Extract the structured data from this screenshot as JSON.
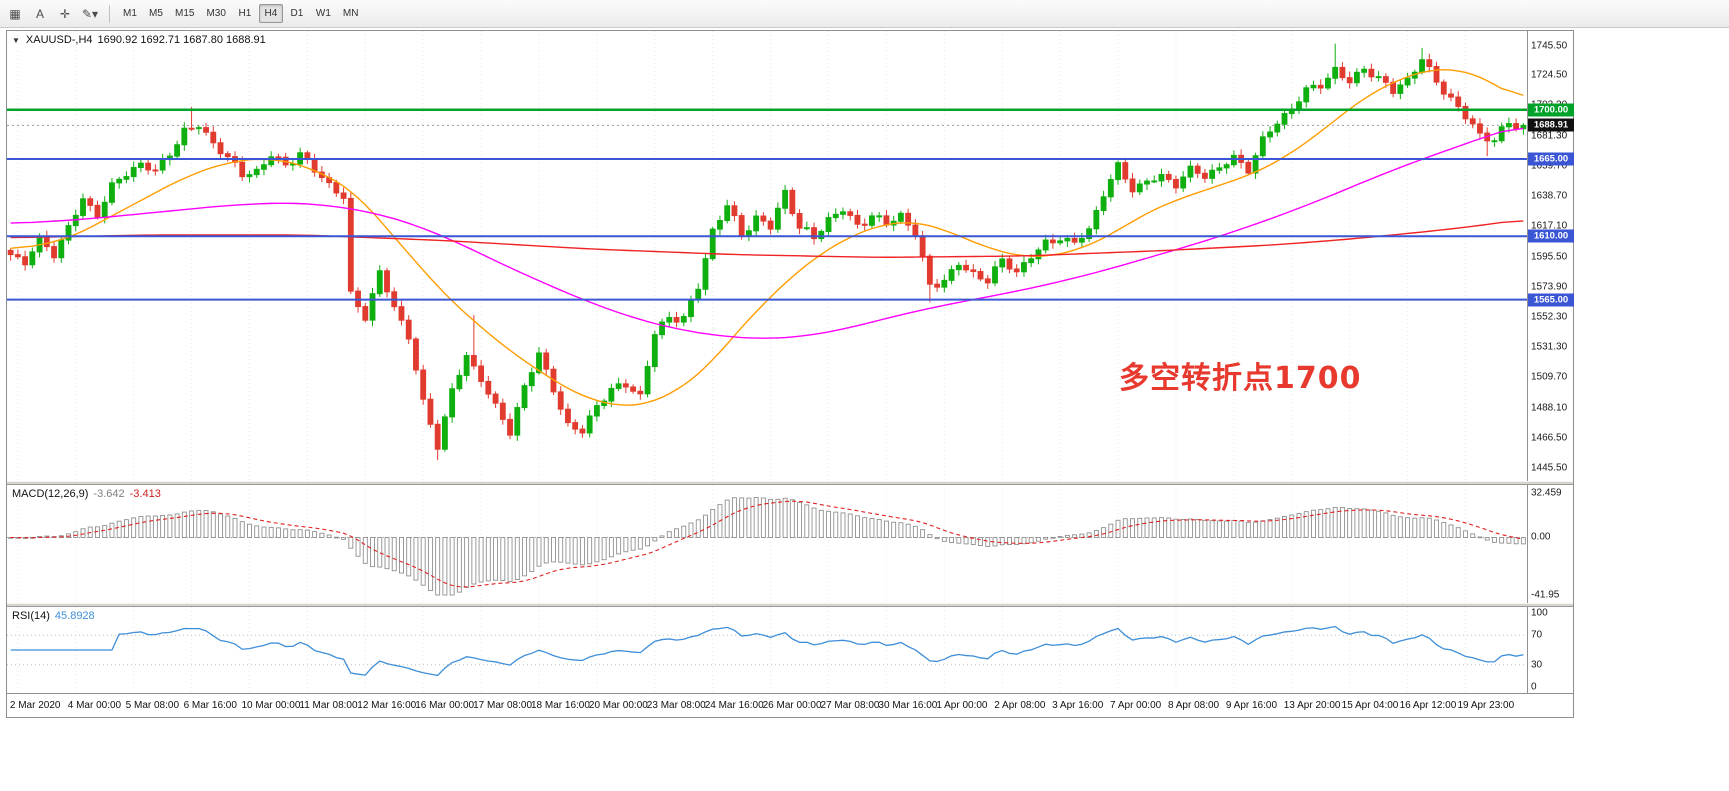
{
  "toolbar": {
    "icons": [
      {
        "name": "chart-template-icon",
        "glyph": "▦"
      },
      {
        "name": "text-tool-icon",
        "glyph": "A"
      },
      {
        "name": "crosshair-icon",
        "glyph": "✛"
      },
      {
        "name": "draw-tools-dropdown-icon",
        "glyph": "✎▾"
      }
    ],
    "timeframes": [
      "M1",
      "M5",
      "M15",
      "M30",
      "H1",
      "H4",
      "D1",
      "W1",
      "MN"
    ],
    "active_timeframe": "H4"
  },
  "chart": {
    "header_symbol": "XAUUSD-,H4",
    "header_ohlc": "1690.92 1692.71 1687.80 1688.91",
    "annotation": {
      "text": "多空转折点1700",
      "color": "#e8392e"
    }
  },
  "macd_header": {
    "title": "MACD(12,26,9)",
    "main_value": "-3.642",
    "signal_value": "-3.413"
  },
  "rsi_header": {
    "title": "RSI(14)",
    "value": "45.8928"
  },
  "chart_data": {
    "type": "candlestick",
    "symbol": "XAUUSD-",
    "timeframe": "H4",
    "last_ohlc": {
      "open": 1690.92,
      "high": 1692.71,
      "low": 1687.8,
      "close": 1688.91
    },
    "num_bars": 210,
    "first_label_bar": 1,
    "bars_per_label": 8,
    "price_scale": {
      "max": 1756,
      "min": 1436
    },
    "y_ticks": [
      "1745.50",
      "1724.50",
      "1703.20",
      "1681.30",
      "1659.70",
      "1638.70",
      "1617.10",
      "1595.50",
      "1573.90",
      "1552.30",
      "1531.30",
      "1509.70",
      "1488.10",
      "1466.50",
      "1445.50"
    ],
    "x_labels": [
      "2 Mar 2020",
      "4 Mar 00:00",
      "5 Mar 08:00",
      "6 Mar 16:00",
      "10 Mar 00:00",
      "11 Mar 08:00",
      "12 Mar 16:00",
      "16 Mar 00:00",
      "17 Mar 08:00",
      "18 Mar 16:00",
      "20 Mar 00:00",
      "23 Mar 08:00",
      "24 Mar 16:00",
      "26 Mar 00:00",
      "27 Mar 08:00",
      "30 Mar 16:00",
      "1 Apr 00:00",
      "2 Apr 08:00",
      "3 Apr 16:00",
      "7 Apr 00:00",
      "8 Apr 08:00",
      "9 Apr 16:00",
      "13 Apr 20:00",
      "15 Apr 04:00",
      "16 Apr 12:00",
      "19 Apr 23:00"
    ],
    "h_lines": [
      {
        "price": 1700.0,
        "label": "1700.00",
        "color": "#00a32a",
        "width": 2.4
      },
      {
        "price": 1665.0,
        "label": "1665.00",
        "color": "#3a56d4",
        "width": 2
      },
      {
        "price": 1610.0,
        "label": "1610.00",
        "color": "#3a56d4",
        "width": 2
      },
      {
        "price": 1565.0,
        "label": "1565.00",
        "color": "#3a56d4",
        "width": 2
      }
    ],
    "current_price": {
      "value": 1688.91,
      "label": "1688.91",
      "badge_color": "#111111"
    },
    "close_waypoints": [
      [
        0,
        1597
      ],
      [
        2,
        1590
      ],
      [
        4,
        1604
      ],
      [
        6,
        1597
      ],
      [
        8,
        1618
      ],
      [
        10,
        1638
      ],
      [
        12,
        1628
      ],
      [
        14,
        1644
      ],
      [
        16,
        1652
      ],
      [
        18,
        1660
      ],
      [
        20,
        1655
      ],
      [
        22,
        1672
      ],
      [
        24,
        1687
      ],
      [
        26,
        1689
      ],
      [
        28,
        1676
      ],
      [
        30,
        1662
      ],
      [
        32,
        1653
      ],
      [
        34,
        1657
      ],
      [
        36,
        1669
      ],
      [
        38,
        1664
      ],
      [
        40,
        1668
      ],
      [
        42,
        1655
      ],
      [
        44,
        1645
      ],
      [
        46,
        1636
      ],
      [
        47,
        1568
      ],
      [
        49,
        1556
      ],
      [
        51,
        1586
      ],
      [
        53,
        1560
      ],
      [
        55,
        1538
      ],
      [
        57,
        1488
      ],
      [
        59,
        1460
      ],
      [
        61,
        1502
      ],
      [
        63,
        1526
      ],
      [
        65,
        1512
      ],
      [
        67,
        1488
      ],
      [
        69,
        1468
      ],
      [
        71,
        1502
      ],
      [
        73,
        1524
      ],
      [
        75,
        1504
      ],
      [
        77,
        1478
      ],
      [
        79,
        1472
      ],
      [
        81,
        1490
      ],
      [
        83,
        1497
      ],
      [
        85,
        1503
      ],
      [
        87,
        1497
      ],
      [
        89,
        1542
      ],
      [
        91,
        1556
      ],
      [
        93,
        1552
      ],
      [
        95,
        1572
      ],
      [
        97,
        1612
      ],
      [
        99,
        1630
      ],
      [
        101,
        1612
      ],
      [
        103,
        1626
      ],
      [
        105,
        1618
      ],
      [
        107,
        1642
      ],
      [
        109,
        1614
      ],
      [
        111,
        1606
      ],
      [
        113,
        1622
      ],
      [
        115,
        1630
      ],
      [
        117,
        1620
      ],
      [
        119,
        1627
      ],
      [
        121,
        1617
      ],
      [
        123,
        1623
      ],
      [
        125,
        1610
      ],
      [
        127,
        1574
      ],
      [
        129,
        1582
      ],
      [
        131,
        1592
      ],
      [
        133,
        1584
      ],
      [
        135,
        1578
      ],
      [
        137,
        1589
      ],
      [
        139,
        1584
      ],
      [
        141,
        1596
      ],
      [
        143,
        1607
      ],
      [
        145,
        1612
      ],
      [
        147,
        1604
      ],
      [
        149,
        1613
      ],
      [
        151,
        1638
      ],
      [
        153,
        1658
      ],
      [
        155,
        1646
      ],
      [
        157,
        1651
      ],
      [
        159,
        1654
      ],
      [
        161,
        1647
      ],
      [
        163,
        1654
      ],
      [
        165,
        1651
      ],
      [
        167,
        1659
      ],
      [
        169,
        1667
      ],
      [
        171,
        1661
      ],
      [
        173,
        1679
      ],
      [
        175,
        1689
      ],
      [
        177,
        1699
      ],
      [
        179,
        1711
      ],
      [
        181,
        1719
      ],
      [
        183,
        1731
      ],
      [
        185,
        1721
      ],
      [
        187,
        1731
      ],
      [
        189,
        1719
      ],
      [
        191,
        1711
      ],
      [
        193,
        1721
      ],
      [
        195,
        1736
      ],
      [
        197,
        1724
      ],
      [
        199,
        1709
      ],
      [
        201,
        1694
      ],
      [
        203,
        1681
      ],
      [
        205,
        1675
      ],
      [
        207,
        1691
      ],
      [
        209,
        1688.91
      ]
    ],
    "spikes": [
      {
        "bar": 25,
        "high": 1702
      },
      {
        "bar": 59,
        "low": 1451
      },
      {
        "bar": 64,
        "high": 1554
      },
      {
        "bar": 127,
        "low": 1563
      },
      {
        "bar": 183,
        "high": 1747
      },
      {
        "bar": 195,
        "high": 1744
      },
      {
        "bar": 204,
        "low": 1667
      }
    ],
    "ma_lines": [
      {
        "name": "ma-fast-orange",
        "color": "#ff9d00",
        "waypoints": [
          [
            0,
            1600
          ],
          [
            8,
            1608
          ],
          [
            16,
            1630
          ],
          [
            24,
            1652
          ],
          [
            30,
            1663
          ],
          [
            36,
            1666
          ],
          [
            42,
            1658
          ],
          [
            48,
            1640
          ],
          [
            52,
            1615
          ],
          [
            56,
            1592
          ],
          [
            60,
            1568
          ],
          [
            64,
            1550
          ],
          [
            68,
            1532
          ],
          [
            72,
            1518
          ],
          [
            76,
            1504
          ],
          [
            80,
            1494
          ],
          [
            84,
            1489
          ],
          [
            88,
            1490
          ],
          [
            92,
            1500
          ],
          [
            96,
            1515
          ],
          [
            100,
            1540
          ],
          [
            104,
            1562
          ],
          [
            108,
            1582
          ],
          [
            112,
            1598
          ],
          [
            116,
            1610
          ],
          [
            120,
            1618
          ],
          [
            124,
            1621
          ],
          [
            128,
            1617
          ],
          [
            132,
            1608
          ],
          [
            136,
            1600
          ],
          [
            140,
            1595
          ],
          [
            144,
            1596
          ],
          [
            148,
            1601
          ],
          [
            152,
            1611
          ],
          [
            156,
            1624
          ],
          [
            160,
            1634
          ],
          [
            164,
            1641
          ],
          [
            168,
            1648
          ],
          [
            172,
            1655
          ],
          [
            176,
            1666
          ],
          [
            180,
            1680
          ],
          [
            184,
            1697
          ],
          [
            188,
            1712
          ],
          [
            192,
            1722
          ],
          [
            196,
            1729
          ],
          [
            200,
            1729
          ],
          [
            204,
            1722
          ],
          [
            207,
            1712
          ],
          [
            209,
            1705
          ]
        ]
      },
      {
        "name": "ma-mid-magenta",
        "color": "#ff00ff",
        "waypoints": [
          [
            0,
            1619
          ],
          [
            10,
            1622
          ],
          [
            20,
            1627
          ],
          [
            30,
            1632
          ],
          [
            38,
            1634
          ],
          [
            44,
            1632
          ],
          [
            50,
            1627
          ],
          [
            56,
            1618
          ],
          [
            62,
            1605
          ],
          [
            68,
            1590
          ],
          [
            74,
            1576
          ],
          [
            80,
            1563
          ],
          [
            86,
            1552
          ],
          [
            92,
            1544
          ],
          [
            98,
            1539
          ],
          [
            104,
            1537
          ],
          [
            110,
            1539
          ],
          [
            116,
            1545
          ],
          [
            122,
            1553
          ],
          [
            128,
            1560
          ],
          [
            134,
            1566
          ],
          [
            140,
            1572
          ],
          [
            146,
            1579
          ],
          [
            152,
            1587
          ],
          [
            158,
            1596
          ],
          [
            164,
            1605
          ],
          [
            170,
            1615
          ],
          [
            176,
            1626
          ],
          [
            182,
            1638
          ],
          [
            188,
            1651
          ],
          [
            194,
            1663
          ],
          [
            200,
            1674
          ],
          [
            205,
            1683
          ],
          [
            209,
            1689
          ]
        ]
      },
      {
        "name": "ma-slow-red",
        "color": "#f02222",
        "waypoints": [
          [
            0,
            1609
          ],
          [
            20,
            1611
          ],
          [
            40,
            1611
          ],
          [
            60,
            1607
          ],
          [
            80,
            1601
          ],
          [
            100,
            1597
          ],
          [
            120,
            1595
          ],
          [
            140,
            1596
          ],
          [
            160,
            1600
          ],
          [
            175,
            1604
          ],
          [
            185,
            1608
          ],
          [
            195,
            1613
          ],
          [
            202,
            1617
          ],
          [
            209,
            1622
          ]
        ]
      }
    ],
    "colors": {
      "up": "#0faf0f",
      "down": "#e13b2f",
      "macd_hist_stroke": "#909090",
      "macd_signal": "#e02020",
      "rsi_line": "#3e8ed8",
      "grid": "#e8e8e8",
      "current_line": "#9a9a9a"
    },
    "macd": {
      "fast": 12,
      "slow": 26,
      "signal": 9,
      "scale_max": 32.459,
      "scale_min": -41.95,
      "ticks": [
        "32.459",
        "0.00",
        "-41.95"
      ]
    },
    "rsi": {
      "period": 14,
      "scale_max": 100,
      "scale_min": 0,
      "ticks": [
        "100",
        "70",
        "30",
        "0"
      ],
      "levels": [
        70,
        30
      ]
    }
  }
}
